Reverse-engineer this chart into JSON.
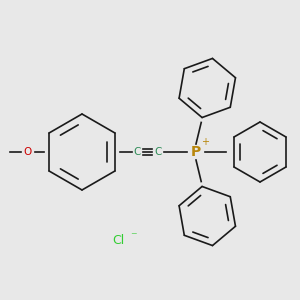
{
  "background_color": "#e8e8e8",
  "bond_color": "#1a1a1a",
  "o_color": "#cc0000",
  "p_color": "#b8860b",
  "c_alkyne_color": "#2e8b57",
  "cl_color": "#32cd32",
  "figsize": [
    3.0,
    3.0
  ],
  "dpi": 100,
  "cl_label": "Cl",
  "cl_charge": "⁻",
  "p_label": "P",
  "p_charge": "+",
  "c1_label": "C",
  "c2_label": "C",
  "o_label": "O"
}
